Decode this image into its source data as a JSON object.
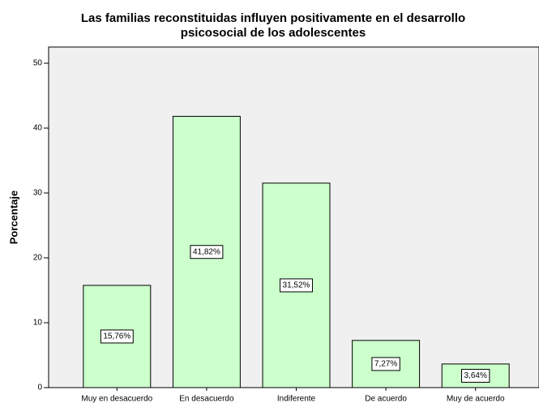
{
  "chart_data": {
    "type": "bar",
    "title": [
      "Las familias reconstituidas influyen positivamente en el desarrollo",
      "psicosocial de los adolescentes"
    ],
    "ylabel": "Porcentaje",
    "categories": [
      "Muy en desacuerdo",
      "En desacuerdo",
      "Indiferente",
      "De acuerdo",
      "Muy de acuerdo"
    ],
    "values": [
      15.76,
      41.82,
      31.52,
      7.27,
      3.64
    ],
    "value_labels": [
      "15,76%",
      "41,82%",
      "31,52%",
      "7,27%",
      "3,64%"
    ],
    "color": "#ccffcc",
    "ylim": [
      0,
      52.5
    ],
    "yticks": [
      0,
      10,
      20,
      30,
      40,
      50
    ],
    "grid": false
  }
}
